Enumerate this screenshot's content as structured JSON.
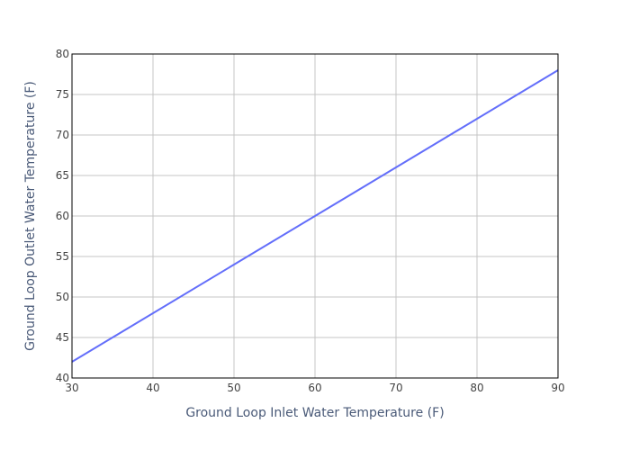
{
  "chart_data": {
    "type": "line",
    "title": "",
    "xlabel": "Ground Loop Inlet Water Temperature (F)",
    "ylabel": "Ground Loop Outlet Water Temperature (F)",
    "xlim": [
      30,
      90
    ],
    "ylim": [
      40,
      80
    ],
    "x_ticks": [
      30,
      40,
      50,
      60,
      70,
      80,
      90
    ],
    "y_ticks": [
      40,
      45,
      50,
      55,
      60,
      65,
      70,
      75,
      80
    ],
    "grid": true,
    "legend": "none",
    "series": [
      {
        "color": "#636efa",
        "x": [
          30,
          90
        ],
        "y": [
          42,
          78
        ]
      }
    ]
  }
}
